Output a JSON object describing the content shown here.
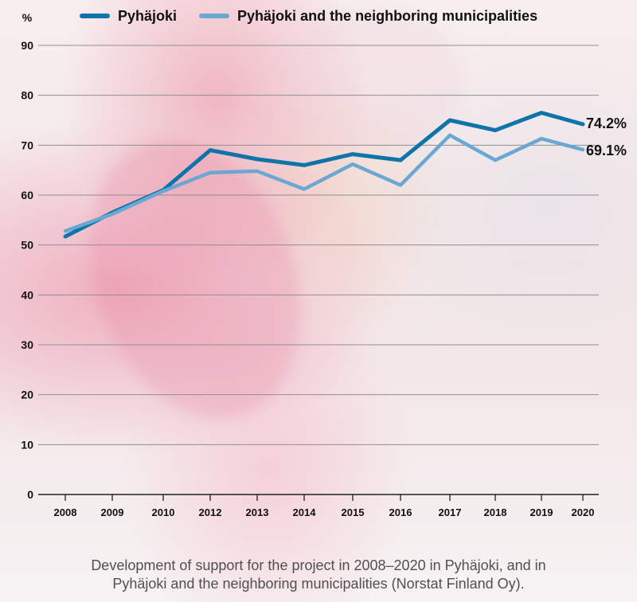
{
  "caption": {
    "line1": "Development of support for the project in 2008–2020 in Pyhäjoki, and in",
    "line2": "Pyhäjoki and the neighboring municipalities (Norstat Finland Oy)."
  },
  "chart_data": {
    "type": "line",
    "ylabel": "%",
    "ylim": [
      0,
      90
    ],
    "yticks": [
      "0",
      "10",
      "20",
      "30",
      "40",
      "50",
      "60",
      "70",
      "80",
      "90"
    ],
    "categories": [
      "2008",
      "2009",
      "2010",
      "2012",
      "2013",
      "2014",
      "2015",
      "2016",
      "2017",
      "2018",
      "2019",
      "2020"
    ],
    "series": [
      {
        "name": "Pyhäjoki",
        "color": "#0f74a9",
        "values": [
          51.7,
          56.5,
          61,
          69,
          67.2,
          66,
          68.2,
          67,
          75,
          73,
          76.5,
          74.2
        ],
        "end_label": "74.2%"
      },
      {
        "name": "Pyhäjoki and the neighboring municipalities",
        "color": "#6aa8d3",
        "values": [
          52.8,
          56.2,
          60.8,
          64.5,
          64.8,
          61.2,
          66.2,
          62,
          72,
          67,
          71.3,
          69.1
        ],
        "end_label": "69.1%"
      }
    ],
    "legend_position": "top"
  }
}
